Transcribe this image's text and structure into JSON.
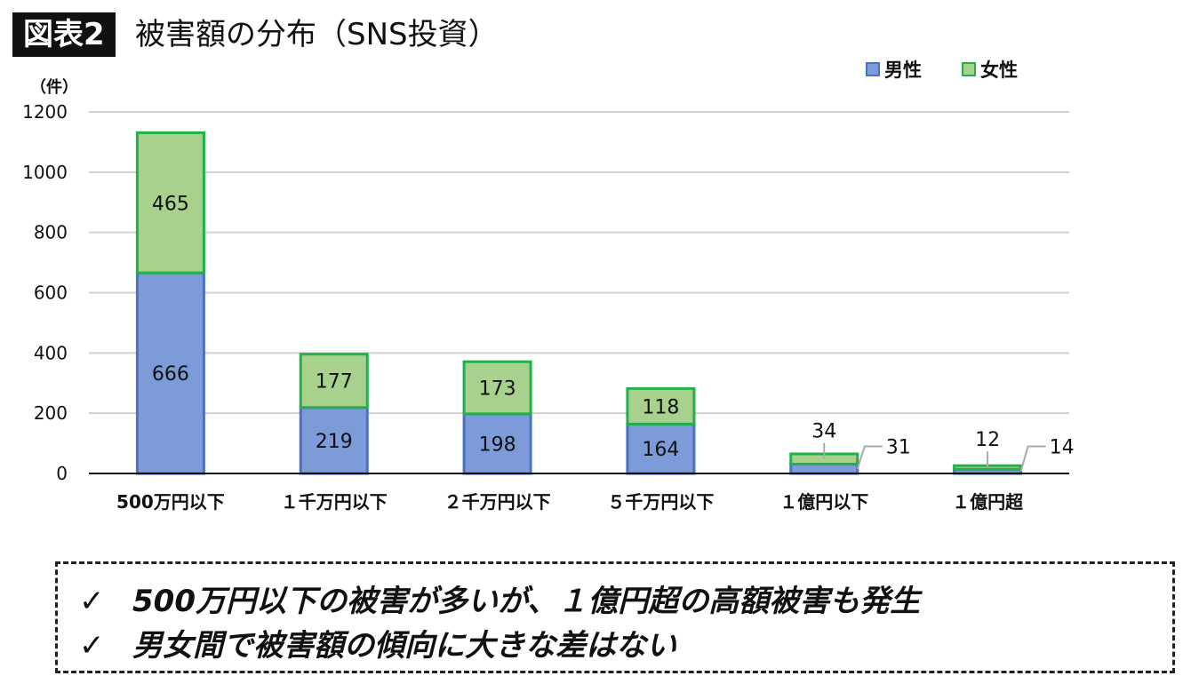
{
  "header": {
    "badge": "図表2",
    "title": "被害額の分布（SNS投資）"
  },
  "chart_data": {
    "type": "bar",
    "stacked": true,
    "title": "",
    "ylabel": "（件）",
    "ylim": [
      0,
      1200
    ],
    "yticks": [
      0,
      200,
      400,
      600,
      800,
      1000,
      1200
    ],
    "grid": true,
    "legend_position": "top-right",
    "categories": [
      "500万円以下",
      "１千万円以下",
      "２千万円以下",
      "５千万円以下",
      "１億円以下",
      "１億円超"
    ],
    "series": [
      {
        "name": "男性",
        "color": "#7d9bd8",
        "border": "#4a72c4",
        "values": [
          666,
          219,
          198,
          164,
          31,
          14
        ]
      },
      {
        "name": "女性",
        "color": "#a8d18d",
        "border": "#22b04b",
        "values": [
          465,
          177,
          173,
          118,
          34,
          12
        ]
      }
    ]
  },
  "notes": [
    "500万円以下の被害が多いが、１億円超の高額被害も発生",
    "男女間で被害額の傾向に大きな差はない"
  ],
  "check_icon": "✓"
}
